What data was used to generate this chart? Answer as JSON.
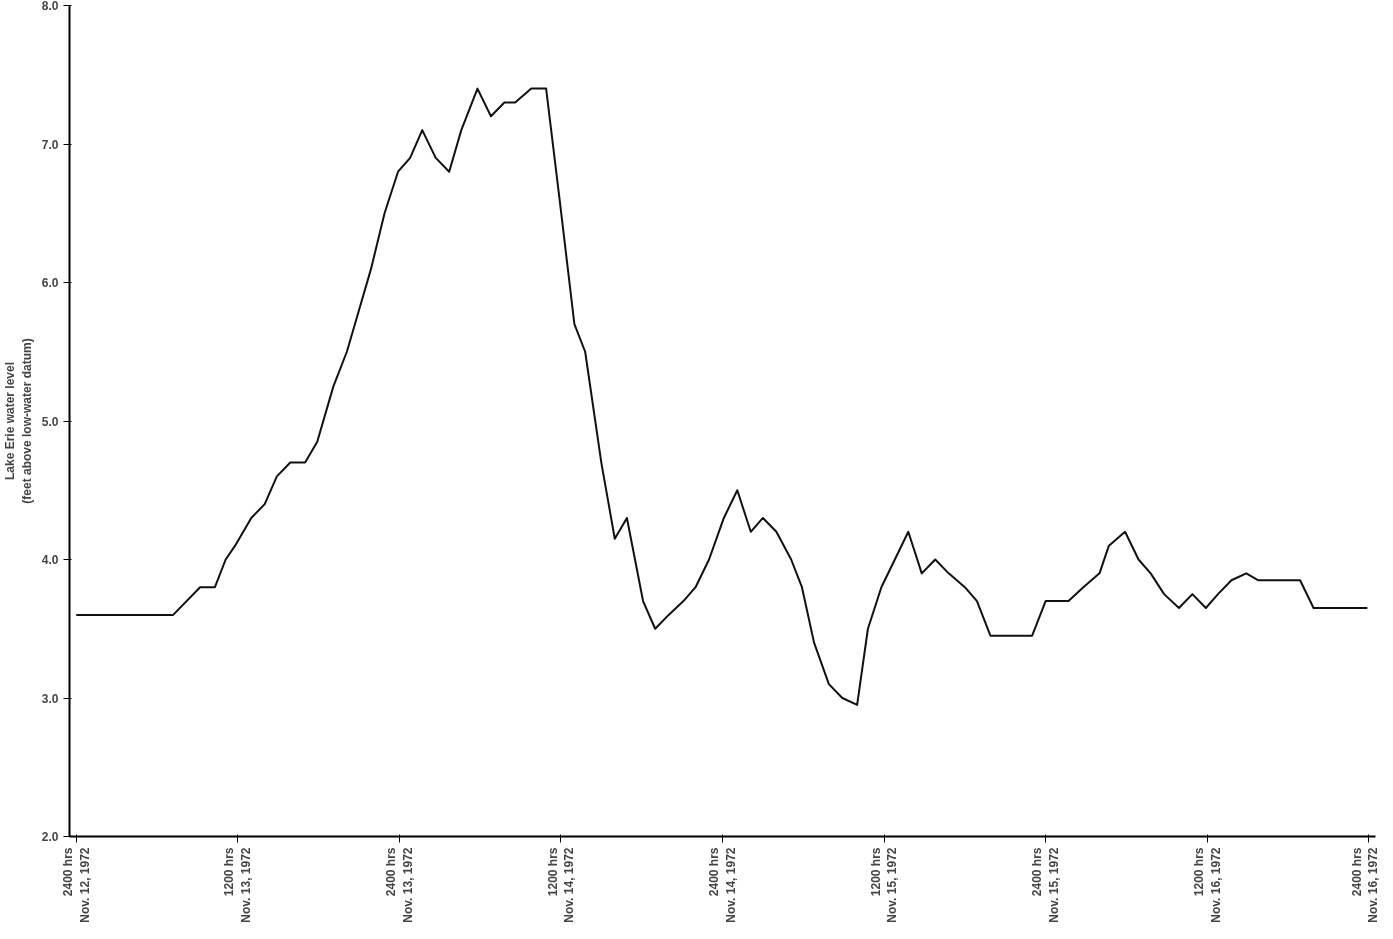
{
  "chart_data": {
    "type": "line",
    "ylabel": "Lake Erie water level\n(feet above low-water datum)",
    "xlim": [
      "1972-11-12T23:30",
      "1972-11-17T00:30"
    ],
    "ylim": [
      2,
      8
    ],
    "xticks": [
      {
        "value": "1972-11-12T24:00",
        "label": "2400 hrs\nNov. 12, 1972"
      },
      {
        "value": "1972-11-13T12:00",
        "label": "1200 hrs\nNov. 13, 1972"
      },
      {
        "value": "1972-11-13T24:00",
        "label": "2400 hrs\nNov. 13, 1972"
      },
      {
        "value": "1972-11-14T12:00",
        "label": "1200 hrs\nNov. 14, 1972"
      },
      {
        "value": "1972-11-14T24:00",
        "label": "2400 hrs\nNov. 14, 1972"
      },
      {
        "value": "1972-11-15T12:00",
        "label": "1200 hrs\nNov. 15, 1972"
      },
      {
        "value": "1972-11-15T24:00",
        "label": "2400 hrs\nNov. 15, 1972"
      },
      {
        "value": "1972-11-16T12:00",
        "label": "1200 hrs\nNov. 16, 1972"
      },
      {
        "value": "1972-11-16T24:00",
        "label": "2400 hrs\nNov. 16, 1972"
      }
    ],
    "yticks": [
      {
        "value": 2,
        "label": "2.0"
      },
      {
        "value": 3,
        "label": "3.0"
      },
      {
        "value": 4,
        "label": "4.0"
      },
      {
        "value": 5,
        "label": "5.0"
      },
      {
        "value": 6,
        "label": "6.0"
      },
      {
        "value": 7,
        "label": "7.0"
      },
      {
        "value": 8,
        "label": "8.0"
      }
    ],
    "grid": false,
    "line_style": "solid",
    "series": [
      {
        "color": "#111111",
        "x": [
          "1972-11-13T00:00",
          "1972-11-13T07:12",
          "1972-11-13T09:12",
          "1972-11-13T10:18",
          "1972-11-13T11:06",
          "1972-11-13T11:48",
          "1972-11-13T13:00",
          "1972-11-13T14:00",
          "1972-11-13T14:54",
          "1972-11-13T15:54",
          "1972-11-13T17:00",
          "1972-11-13T17:54",
          "1972-11-13T19:06",
          "1972-11-13T20:06",
          "1972-11-13T21:00",
          "1972-11-13T21:54",
          "1972-11-13T22:54",
          "1972-11-13T23:54",
          "1972-11-14T00:48",
          "1972-11-14T01:42",
          "1972-11-14T02:42",
          "1972-11-14T03:42",
          "1972-11-14T04:36",
          "1972-11-14T05:48",
          "1972-11-14T06:48",
          "1972-11-14T07:48",
          "1972-11-14T08:36",
          "1972-11-14T09:48",
          "1972-11-14T10:54",
          "1972-11-14T11:54",
          "1972-11-14T13:00",
          "1972-11-14T13:48",
          "1972-11-14T15:00",
          "1972-11-14T16:00",
          "1972-11-14T16:54",
          "1972-11-14T18:06",
          "1972-11-14T19:00",
          "1972-11-14T20:00",
          "1972-11-14T21:06",
          "1972-11-14T22:00",
          "1972-11-14T23:00",
          "1972-11-15T00:06",
          "1972-11-15T01:06",
          "1972-11-15T02:06",
          "1972-11-15T03:00",
          "1972-11-15T04:00",
          "1972-11-15T05:06",
          "1972-11-15T05:54",
          "1972-11-15T06:48",
          "1972-11-15T07:54",
          "1972-11-15T08:54",
          "1972-11-15T10:00",
          "1972-11-15T10:48",
          "1972-11-15T11:48",
          "1972-11-15T12:48",
          "1972-11-15T13:48",
          "1972-11-15T14:48",
          "1972-11-15T15:48",
          "1972-11-15T16:48",
          "1972-11-15T18:00",
          "1972-11-15T18:54",
          "1972-11-15T19:54",
          "1972-11-15T23:00",
          "1972-11-16T00:00",
          "1972-11-16T01:42",
          "1972-11-16T02:48",
          "1972-11-16T04:00",
          "1972-11-16T04:42",
          "1972-11-16T05:54",
          "1972-11-16T06:54",
          "1972-11-16T07:48",
          "1972-11-16T08:48",
          "1972-11-16T09:54",
          "1972-11-16T10:54",
          "1972-11-16T11:54",
          "1972-11-16T12:48",
          "1972-11-16T13:48",
          "1972-11-16T14:54",
          "1972-11-16T15:48",
          "1972-11-16T18:54",
          "1972-11-16T19:54",
          "1972-11-16T23:54"
        ],
        "values": [
          3.6,
          3.6,
          3.8,
          3.8,
          4.0,
          4.1,
          4.3,
          4.4,
          4.6,
          4.7,
          4.7,
          4.85,
          5.25,
          5.5,
          5.8,
          6.1,
          6.5,
          6.8,
          6.9,
          7.1,
          6.9,
          6.8,
          7.1,
          7.4,
          7.2,
          7.3,
          7.3,
          7.4,
          7.4,
          6.6,
          5.7,
          5.5,
          4.7,
          4.15,
          4.3,
          3.7,
          3.5,
          3.6,
          3.7,
          3.8,
          4.0,
          4.3,
          4.5,
          4.2,
          4.3,
          4.2,
          4.0,
          3.8,
          3.4,
          3.1,
          3.0,
          2.95,
          3.5,
          3.8,
          4.0,
          4.2,
          3.9,
          4.0,
          3.9,
          3.8,
          3.7,
          3.45,
          3.45,
          3.7,
          3.7,
          3.8,
          3.9,
          4.1,
          4.2,
          4.0,
          3.9,
          3.75,
          3.65,
          3.75,
          3.65,
          3.75,
          3.85,
          3.9,
          3.85,
          3.85,
          3.65,
          3.65
        ]
      }
    ]
  }
}
